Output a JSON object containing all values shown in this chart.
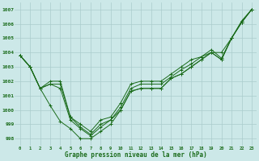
{
  "xlabel": "Graphe pression niveau de la mer (hPa)",
  "xlim": [
    -0.5,
    23.5
  ],
  "ylim": [
    997.5,
    1007.5
  ],
  "yticks": [
    998,
    999,
    1000,
    1001,
    1002,
    1003,
    1004,
    1005,
    1006,
    1007
  ],
  "xticks": [
    0,
    1,
    2,
    3,
    4,
    5,
    6,
    7,
    8,
    9,
    10,
    11,
    12,
    13,
    14,
    15,
    16,
    17,
    18,
    19,
    20,
    21,
    22,
    23
  ],
  "bg_color": "#cce8e8",
  "grid_color": "#aacccc",
  "line_color": "#1a6b1a",
  "marker": "+",
  "lines": [
    [
      1003.8,
      1003.0,
      1001.5,
      1001.8,
      1001.5,
      999.3,
      998.7,
      998.2,
      998.8,
      999.3,
      1000.0,
      1001.3,
      1001.5,
      1001.5,
      1001.5,
      1002.2,
      1002.5,
      1003.0,
      1003.5,
      1004.0,
      1003.5,
      1005.0,
      1006.1,
      1007.0
    ],
    [
      1003.8,
      1003.0,
      1001.5,
      1001.8,
      1001.8,
      999.5,
      998.8,
      998.3,
      999.0,
      999.3,
      1000.2,
      1001.5,
      1001.8,
      1001.8,
      1001.8,
      1002.3,
      1002.8,
      1003.2,
      1003.7,
      1004.0,
      1003.5,
      1005.0,
      1006.1,
      1007.0
    ],
    [
      1003.8,
      1003.0,
      1001.5,
      1002.0,
      1002.0,
      999.5,
      999.0,
      998.5,
      999.3,
      999.5,
      1000.5,
      1001.8,
      1002.0,
      1002.0,
      1002.0,
      1002.5,
      1003.0,
      1003.5,
      1003.7,
      1004.2,
      1003.6,
      1005.0,
      1006.2,
      1007.0
    ],
    [
      1003.8,
      1003.0,
      1001.5,
      1000.3,
      999.2,
      998.7,
      998.0,
      998.0,
      998.5,
      999.0,
      1000.0,
      1001.3,
      1001.5,
      1001.5,
      1001.5,
      1002.2,
      1002.5,
      1003.0,
      1003.5,
      1004.0,
      1004.0,
      1005.0,
      1006.1,
      1007.0
    ]
  ]
}
